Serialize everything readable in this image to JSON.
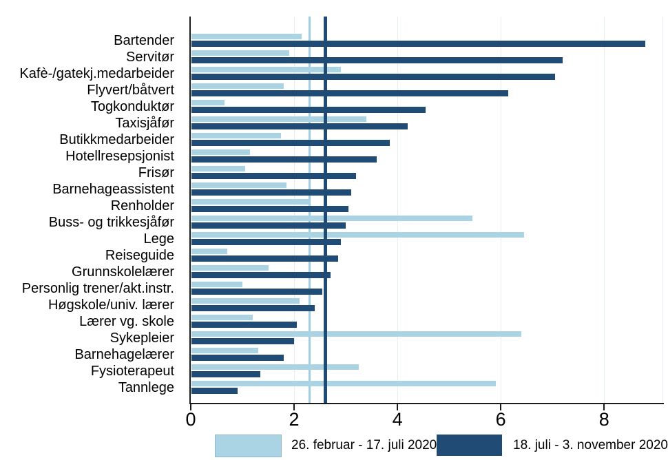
{
  "chart_data": {
    "type": "bar",
    "orientation": "horizontal",
    "title": "",
    "xlabel": "",
    "ylabel": "",
    "grid": true,
    "legend_position": "bottom",
    "x_ticks": [
      0,
      2,
      4,
      6,
      8
    ],
    "xlim": [
      0,
      9.13
    ],
    "categories": [
      "Bartender",
      "Servitør",
      "Kafè-/gatekj.medarbeider",
      "Flyvert/båtvert",
      "Togkonduktør",
      "Taxisjåfør",
      "Butikkmedarbeider",
      "Hotellresepsjonist",
      "Frisør",
      "Barnehageassistent",
      "Renholder",
      "Buss- og trikkesjåfør",
      "Lege",
      "Reiseguide",
      "Grunnskolelærer",
      "Personlig trener/akt.instr.",
      "Høgskole/univ. lærer",
      "Lærer vg. skole",
      "Sykepleier",
      "Barnehagelærer",
      "Fysioterapeut",
      "Tannlege"
    ],
    "series": [
      {
        "name": "26. februar - 17. juli 2020",
        "color": "#aad4e4",
        "values": [
          2.15,
          1.9,
          2.9,
          1.8,
          0.65,
          3.4,
          1.75,
          1.15,
          1.05,
          1.85,
          2.3,
          5.45,
          6.45,
          0.7,
          1.5,
          1.0,
          2.1,
          1.2,
          6.4,
          1.3,
          3.25,
          5.9
        ]
      },
      {
        "name": "18. juli - 3. november 2020",
        "color": "#1f4b75",
        "values": [
          8.8,
          7.2,
          7.05,
          6.15,
          4.55,
          4.2,
          3.85,
          3.6,
          3.2,
          3.1,
          3.05,
          3.0,
          2.9,
          2.85,
          2.7,
          2.55,
          2.4,
          2.05,
          2.0,
          1.8,
          1.35,
          0.9
        ]
      }
    ],
    "ref_lines": [
      {
        "series": "26. februar - 17. juli 2020",
        "value": 2.3,
        "color": "#9dcde2",
        "thickness": 3
      },
      {
        "series": "18. juli - 3. november 2020",
        "value": 2.6,
        "color": "#1f4b75",
        "thickness": 5
      }
    ]
  },
  "colors": {
    "background": "#ffffff",
    "grid": "#e6eef5",
    "axis": "#1a1a1a",
    "text": "#000000"
  }
}
